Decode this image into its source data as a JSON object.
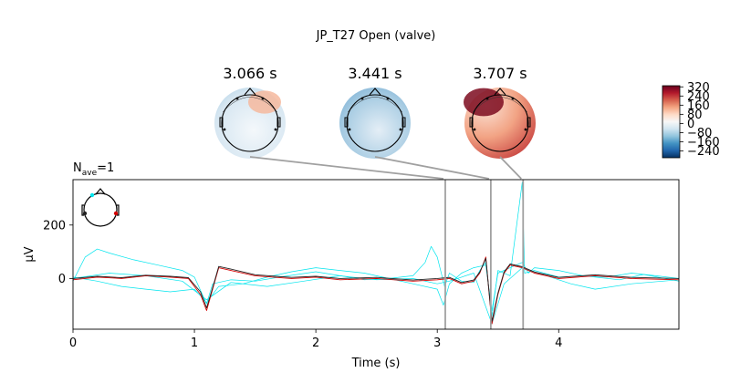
{
  "title": "JP_T27 Open (valve)",
  "nave_label": "N",
  "nave_sub": "ave",
  "nave_value": "=1",
  "topomaps": [
    {
      "time": 3.066,
      "label": "3.066 s"
    },
    {
      "time": 3.441,
      "label": "3.441 s"
    },
    {
      "time": 3.707,
      "label": "3.707 s"
    }
  ],
  "colorbar": {
    "ticks": [
      "320",
      "240",
      "160",
      "80",
      "0",
      "−80",
      "−160",
      "−240"
    ],
    "tick_values": [
      320,
      240,
      160,
      80,
      0,
      -80,
      -160,
      -240
    ],
    "range": [
      -300,
      330
    ],
    "colors": [
      "#053061",
      "#2166ac",
      "#4393c3",
      "#92c5de",
      "#d1e5f0",
      "#f7f7f7",
      "#fddbc7",
      "#f4a582",
      "#d6604d",
      "#b2182b",
      "#67001f"
    ]
  },
  "chart_data": {
    "type": "line",
    "xlabel": "Time (s)",
    "ylabel": "µV",
    "xlim": [
      0,
      4.99
    ],
    "ylim": [
      -190,
      370
    ],
    "xticks": [
      0,
      1,
      2,
      3,
      4
    ],
    "xtick_labels": [
      "0",
      "1",
      "2",
      "3",
      "4"
    ],
    "yticks": [
      0,
      200
    ],
    "ytick_labels": [
      "0",
      "200"
    ],
    "grid": false,
    "colors": {
      "cyan": "#00e5ee",
      "red": "#d40000",
      "dark": "#222222",
      "marker": "#a0a0a0"
    },
    "series": [
      {
        "color": "cyan",
        "x": [
          0,
          0.1,
          0.2,
          0.3,
          0.5,
          0.7,
          0.9,
          1.0,
          1.1,
          1.15,
          1.3,
          1.5,
          1.7,
          2.0,
          2.2,
          2.4,
          2.6,
          2.8,
          2.9,
          2.95,
          3.0,
          3.06,
          3.1,
          3.2,
          3.3,
          3.35,
          3.4,
          3.45,
          3.5,
          3.6,
          3.7,
          3.72,
          3.8,
          4.0,
          4.2,
          4.5,
          4.7,
          4.99
        ],
        "y": [
          -10,
          80,
          110,
          95,
          70,
          50,
          30,
          5,
          -95,
          -20,
          -5,
          -10,
          5,
          25,
          10,
          -5,
          0,
          10,
          60,
          120,
          80,
          -30,
          20,
          -10,
          -15,
          30,
          60,
          -140,
          30,
          10,
          360,
          20,
          30,
          5,
          10,
          -5,
          15,
          -10
        ]
      },
      {
        "color": "cyan",
        "x": [
          0,
          0.2,
          0.4,
          0.6,
          0.8,
          1.0,
          1.1,
          1.2,
          1.4,
          1.6,
          1.8,
          2.0,
          2.2,
          2.4,
          2.6,
          2.8,
          3.0,
          3.05,
          3.1,
          3.2,
          3.3,
          3.4,
          3.45,
          3.5,
          3.6,
          3.7,
          3.75,
          3.8,
          4.0,
          4.2,
          4.4,
          4.6,
          4.8,
          4.99
        ],
        "y": [
          5,
          -10,
          -30,
          -40,
          -50,
          -40,
          -90,
          -30,
          -20,
          5,
          25,
          40,
          30,
          20,
          0,
          -20,
          -40,
          -100,
          -20,
          20,
          40,
          50,
          -120,
          20,
          40,
          60,
          20,
          40,
          30,
          10,
          5,
          20,
          10,
          0
        ]
      },
      {
        "color": "cyan",
        "x": [
          0,
          0.3,
          0.6,
          0.9,
          1.1,
          1.3,
          1.6,
          1.9,
          2.2,
          2.5,
          2.8,
          3.0,
          3.1,
          3.3,
          3.45,
          3.55,
          3.7,
          3.9,
          4.1,
          4.3,
          4.6,
          4.99
        ],
        "y": [
          0,
          20,
          10,
          -10,
          -80,
          -15,
          -30,
          -10,
          10,
          -5,
          0,
          -20,
          -10,
          20,
          -170,
          -20,
          40,
          10,
          -20,
          -40,
          -20,
          -5
        ]
      },
      {
        "color": "red",
        "x": [
          0,
          0.2,
          0.4,
          0.6,
          0.8,
          0.95,
          1.05,
          1.1,
          1.15,
          1.2,
          1.3,
          1.5,
          1.8,
          2.0,
          2.2,
          2.5,
          2.8,
          3.0,
          3.1,
          3.2,
          3.3,
          3.35,
          3.4,
          3.45,
          3.5,
          3.55,
          3.6,
          3.7,
          3.8,
          4.0,
          4.3,
          4.6,
          4.99
        ],
        "y": [
          -5,
          5,
          0,
          10,
          5,
          0,
          -60,
          -120,
          -40,
          40,
          30,
          10,
          0,
          5,
          -5,
          0,
          -10,
          -5,
          0,
          -20,
          -10,
          20,
          80,
          -170,
          -60,
          20,
          50,
          40,
          20,
          0,
          10,
          0,
          -5
        ]
      },
      {
        "color": "dark",
        "x": [
          0,
          0.2,
          0.4,
          0.6,
          0.8,
          0.95,
          1.05,
          1.1,
          1.15,
          1.2,
          1.3,
          1.5,
          1.8,
          2.0,
          2.2,
          2.5,
          2.8,
          3.0,
          3.1,
          3.2,
          3.3,
          3.35,
          3.4,
          3.45,
          3.5,
          3.55,
          3.6,
          3.7,
          3.8,
          4.0,
          4.3,
          4.6,
          4.99
        ],
        "y": [
          0,
          8,
          3,
          12,
          8,
          3,
          -50,
          -110,
          -35,
          45,
          35,
          14,
          4,
          8,
          0,
          4,
          -6,
          0,
          4,
          -15,
          -6,
          24,
          75,
          -160,
          -55,
          24,
          54,
          44,
          24,
          4,
          14,
          4,
          0
        ]
      }
    ],
    "markers": [
      3.066,
      3.441,
      3.707
    ]
  }
}
